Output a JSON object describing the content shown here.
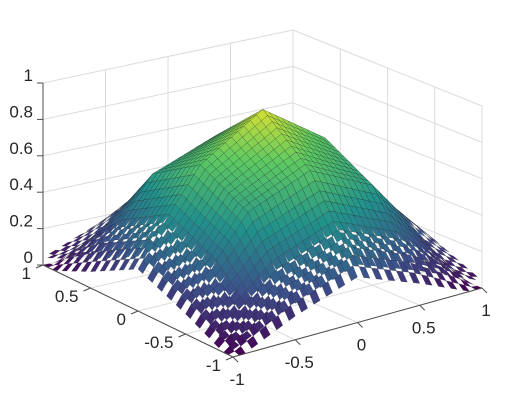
{
  "chart_data": {
    "type": "surface",
    "title": "",
    "xlabel": "",
    "ylabel": "",
    "zlabel": "",
    "xlim": [
      -1,
      1
    ],
    "ylim": [
      -1,
      1
    ],
    "zlim": [
      0,
      1
    ],
    "grid": true,
    "colormap": "viridis",
    "colormap_stops": [
      "#440154",
      "#3b528b",
      "#21918c",
      "#5ec962",
      "#fde725"
    ],
    "x_ticks": [
      {
        "value": -1,
        "label": "-1"
      },
      {
        "value": -0.5,
        "label": "-0.5"
      },
      {
        "value": 0,
        "label": "0"
      },
      {
        "value": 0.5,
        "label": "0.5"
      },
      {
        "value": 1,
        "label": "1"
      }
    ],
    "y_ticks": [
      {
        "value": -1,
        "label": "-1"
      },
      {
        "value": -0.5,
        "label": "-0.5"
      },
      {
        "value": 0,
        "label": "0"
      },
      {
        "value": 0.5,
        "label": "0.5"
      },
      {
        "value": 1,
        "label": "1"
      }
    ],
    "z_ticks": [
      {
        "value": 0,
        "label": "0"
      },
      {
        "value": 0.2,
        "label": "0.2"
      },
      {
        "value": 0.4,
        "label": "0.4"
      },
      {
        "value": 0.6,
        "label": "0.6"
      },
      {
        "value": 0.8,
        "label": "0.8"
      },
      {
        "value": 1,
        "label": "1"
      }
    ],
    "grid_points": [
      -1,
      -0.5,
      0,
      0.5,
      1
    ],
    "z_values": [
      [
        0.0,
        0.1,
        0.22,
        0.12,
        0.0
      ],
      [
        0.12,
        0.52,
        0.7,
        0.55,
        0.15
      ],
      [
        0.25,
        0.68,
        0.94,
        0.72,
        0.28
      ],
      [
        0.14,
        0.55,
        0.72,
        0.58,
        0.16
      ],
      [
        0.0,
        0.12,
        0.26,
        0.14,
        0.0
      ]
    ],
    "surface_description_sampled": "peaked dome, max ~0.95 near (0,0), falling to ~0 at corners"
  }
}
